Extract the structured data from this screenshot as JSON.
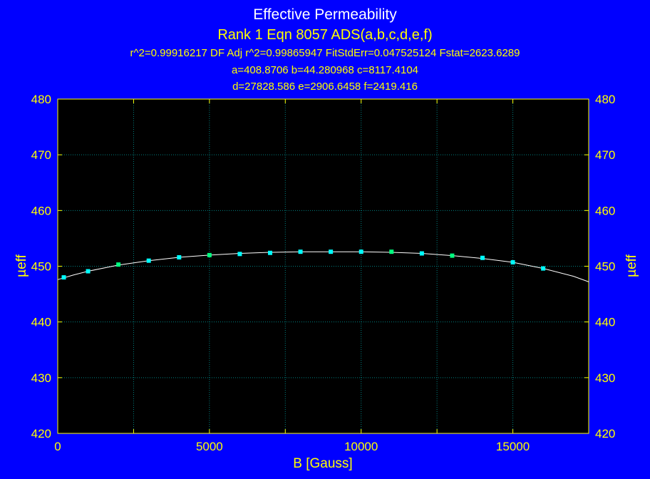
{
  "chart_data": {
    "type": "scatter",
    "title": "Effective Permeability",
    "subtitle": "Rank 1  Eqn 8057  ADS(a,b,c,d,e,f)",
    "stats_line": "r^2=0.99916217  DF Adj r^2=0.99865947  FitStdErr=0.047525124  Fstat=2623.6289",
    "params_line1": "a=408.8706 b=44.280968 c=8117.4104",
    "params_line2": "d=27828.586 e=2906.6458 f=2419.416",
    "xlabel": "B [Gauss]",
    "ylabel": "µeff",
    "ylabel_right": "µeff",
    "xlim": [
      0,
      17500
    ],
    "ylim": [
      420,
      480
    ],
    "x_ticks": [
      0,
      5000,
      10000,
      15000
    ],
    "y_ticks": [
      420,
      430,
      440,
      450,
      460,
      470,
      480
    ],
    "grid": true,
    "background_color": "#000000",
    "page_color": "#0000ff",
    "grid_color": "#008080",
    "axis_color": "#ffff00",
    "curve_color": "#ffffff",
    "series": [
      {
        "name": "data",
        "x": [
          200,
          1000,
          2000,
          3000,
          4000,
          5000,
          6000,
          7000,
          8000,
          9000,
          10000,
          11000,
          12000,
          13000,
          14000,
          15000,
          16000
        ],
        "y": [
          448.0,
          449.1,
          450.3,
          451.0,
          451.6,
          452.0,
          452.2,
          452.4,
          452.6,
          452.6,
          452.6,
          452.6,
          452.3,
          451.9,
          451.5,
          450.7,
          449.6
        ],
        "colors": [
          "#00ffff",
          "#00ffff",
          "#00ff7f",
          "#00ffff",
          "#00ffff",
          "#00ff7f",
          "#00ffff",
          "#00ffff",
          "#00ffff",
          "#00ffff",
          "#00ffff",
          "#00ff7f",
          "#00ffff",
          "#00ff7f",
          "#00ffff",
          "#00ffff",
          "#00ffff"
        ]
      },
      {
        "name": "fit",
        "x": [
          0,
          500,
          1000,
          2000,
          3000,
          4000,
          5000,
          6000,
          7000,
          8000,
          9000,
          10000,
          11000,
          12000,
          13000,
          14000,
          15000,
          16000,
          17000,
          17500
        ],
        "y": [
          447.6,
          448.4,
          449.1,
          450.2,
          451.0,
          451.6,
          452.0,
          452.3,
          452.5,
          452.6,
          452.6,
          452.6,
          452.5,
          452.3,
          451.9,
          451.4,
          450.7,
          449.6,
          448.2,
          447.2
        ]
      }
    ]
  }
}
